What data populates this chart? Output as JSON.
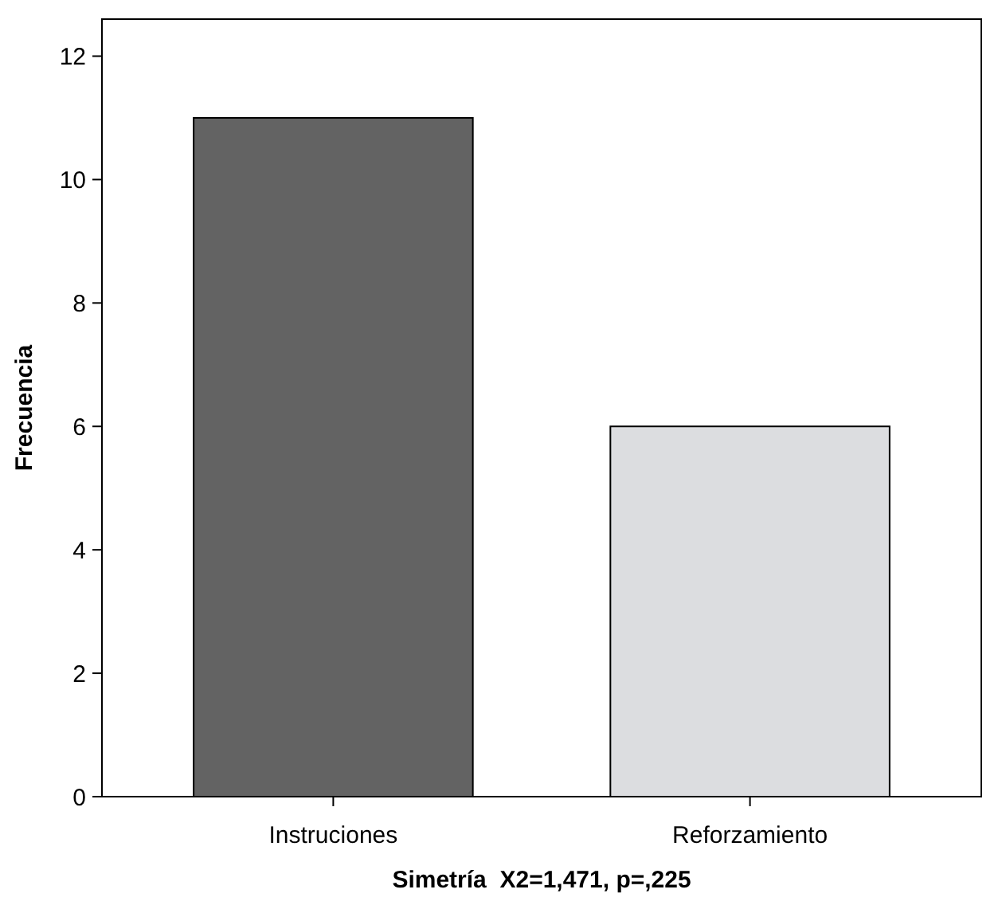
{
  "chart_data": {
    "type": "bar",
    "xlabel": "Simetría  X2=1,471, p=,225",
    "ylabel": "Frecuencia",
    "categories": [
      "Instruciones",
      "Reforzamiento"
    ],
    "values": [
      11,
      6
    ],
    "colors": [
      "#636363",
      "#dcdde0"
    ],
    "ylim": [
      0,
      12.6
    ],
    "yticks": [
      0,
      2,
      4,
      6,
      8,
      10,
      12
    ],
    "grid": false
  }
}
